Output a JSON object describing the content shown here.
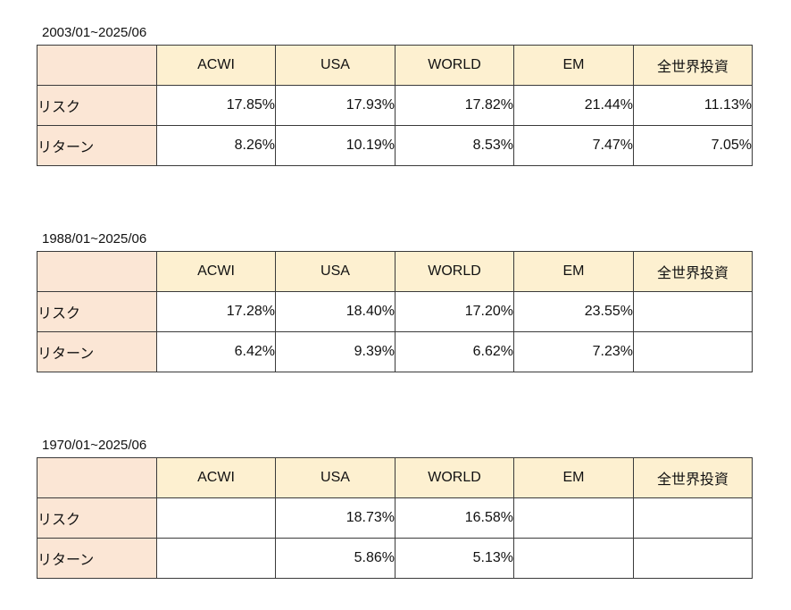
{
  "columns": [
    "ACWI",
    "USA",
    "WORLD",
    "EM",
    "全世界投資"
  ],
  "rows": [
    "リスク",
    "リターン"
  ],
  "tables": [
    {
      "period": "2003/01~2025/06",
      "risk": [
        "17.85%",
        "17.93%",
        "17.82%",
        "21.44%",
        "11.13%"
      ],
      "return": [
        "8.26%",
        "10.19%",
        "8.53%",
        "7.47%",
        "7.05%"
      ]
    },
    {
      "period": "1988/01~2025/06",
      "risk": [
        "17.28%",
        "18.40%",
        "17.20%",
        "23.55%",
        ""
      ],
      "return": [
        "6.42%",
        "9.39%",
        "6.62%",
        "7.23%",
        ""
      ]
    },
    {
      "period": "1970/01~2025/06",
      "risk": [
        "",
        "18.73%",
        "16.58%",
        "",
        ""
      ],
      "return": [
        "",
        "5.86%",
        "5.13%",
        "",
        ""
      ]
    }
  ],
  "colors": {
    "header_fill": "#fdf0d0",
    "row_label_fill": "#fbe6d5",
    "border": "#3a3a3a"
  }
}
